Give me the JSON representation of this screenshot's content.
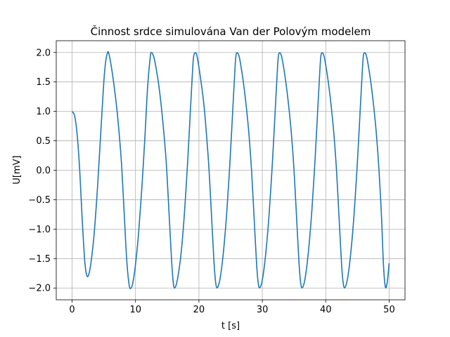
{
  "chart_data": {
    "type": "line",
    "title": "Činnost srdce simulována Van der Polovým modelem",
    "xlabel": "t [s]",
    "ylabel": "U[mV]",
    "xlim": [
      -2.5,
      52.5
    ],
    "ylim": [
      -2.2,
      2.2
    ],
    "grid": true,
    "x_ticks": [
      0,
      10,
      20,
      30,
      40,
      50
    ],
    "x_tick_labels": [
      "0",
      "10",
      "20",
      "30",
      "40",
      "50"
    ],
    "y_ticks": [
      -2.0,
      -1.5,
      -1.0,
      -0.5,
      0.0,
      0.5,
      1.0,
      1.5,
      2.0
    ],
    "y_tick_labels": [
      "−2.0",
      "−1.5",
      "−1.0",
      "−0.5",
      "0.0",
      "0.5",
      "1.0",
      "1.5",
      "2.0"
    ],
    "series": [
      {
        "color": "#1f77b4",
        "x": [
          0,
          0.4,
          0.8,
          1.2,
          1.6,
          2.0,
          2.3,
          2.6,
          3.0,
          3.5,
          4.0,
          4.5,
          5.0,
          5.3,
          5.6,
          5.8,
          6.2,
          6.6,
          7.0,
          7.4,
          7.8,
          8.2,
          8.6,
          9.0,
          9.3,
          9.6,
          10.0,
          10.5,
          11.0,
          11.5,
          11.9,
          12.3,
          12.5,
          12.9,
          13.3,
          13.7,
          14.1,
          14.5,
          14.9,
          15.3,
          15.7,
          16.0,
          16.3,
          16.7,
          17.2,
          17.7,
          18.2,
          18.6,
          19.0,
          19.2,
          19.6,
          20.0,
          20.4,
          20.8,
          21.2,
          21.6,
          22.0,
          22.4,
          22.7,
          23.0,
          23.4,
          23.9,
          24.4,
          24.9,
          25.3,
          25.7,
          25.9,
          26.3,
          26.7,
          27.1,
          27.5,
          27.9,
          28.3,
          28.7,
          29.1,
          29.4,
          29.7,
          30.1,
          30.6,
          31.1,
          31.6,
          32.0,
          32.4,
          32.6,
          33.0,
          33.4,
          33.8,
          34.2,
          34.6,
          35.0,
          35.4,
          35.8,
          36.1,
          36.4,
          36.8,
          37.3,
          37.8,
          38.3,
          38.7,
          39.1,
          39.3,
          39.7,
          40.1,
          40.5,
          40.9,
          41.3,
          41.7,
          42.1,
          42.5,
          42.8,
          43.1,
          43.5,
          44.0,
          44.5,
          45.0,
          45.4,
          45.8,
          46.0,
          46.4,
          46.8,
          47.2,
          47.6,
          48.0,
          48.4,
          48.8,
          49.1,
          49.4,
          49.7,
          50.0
        ],
        "y": [
          1.0,
          0.92,
          0.6,
          0.0,
          -0.85,
          -1.55,
          -1.78,
          -1.78,
          -1.55,
          -1.05,
          -0.3,
          0.6,
          1.5,
          1.85,
          2.0,
          1.98,
          1.75,
          1.45,
          1.1,
          0.65,
          0.1,
          -0.7,
          -1.5,
          -1.95,
          -2.0,
          -1.9,
          -1.6,
          -1.05,
          -0.3,
          0.6,
          1.4,
          1.9,
          2.0,
          1.92,
          1.7,
          1.42,
          1.05,
          0.6,
          0.05,
          -0.75,
          -1.55,
          -1.95,
          -1.98,
          -1.8,
          -1.4,
          -0.75,
          0.1,
          0.9,
          1.7,
          1.95,
          1.98,
          1.75,
          1.45,
          1.1,
          0.6,
          0.0,
          -0.8,
          -1.6,
          -1.95,
          -1.98,
          -1.8,
          -1.35,
          -0.7,
          0.15,
          0.95,
          1.75,
          1.98,
          1.95,
          1.72,
          1.42,
          1.05,
          0.6,
          0.0,
          -0.8,
          -1.6,
          -1.95,
          -1.98,
          -1.8,
          -1.35,
          -0.7,
          0.15,
          0.95,
          1.75,
          1.98,
          1.95,
          1.72,
          1.42,
          1.05,
          0.6,
          0.0,
          -0.8,
          -1.6,
          -1.95,
          -1.98,
          -1.8,
          -1.35,
          -0.7,
          0.15,
          0.95,
          1.75,
          1.98,
          1.95,
          1.72,
          1.42,
          1.05,
          0.6,
          0.0,
          -0.8,
          -1.6,
          -1.95,
          -1.98,
          -1.8,
          -1.35,
          -0.7,
          0.15,
          0.95,
          1.75,
          1.98,
          1.95,
          1.72,
          1.42,
          1.05,
          0.6,
          0.0,
          -0.8,
          -1.6,
          -1.98,
          -1.9,
          -1.58
        ]
      }
    ]
  }
}
